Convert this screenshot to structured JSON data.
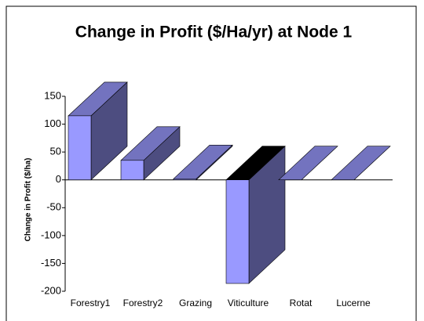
{
  "chart_data": {
    "type": "bar3d",
    "title": "Change in Profit ($/Ha/yr) at Node 1",
    "y_label": "Change in Profit ($/ha)",
    "categories": [
      "Forestry1",
      "Forestry2",
      "Grazing",
      "Viticulture",
      "Rotat",
      "Lucerne"
    ],
    "values": [
      115,
      35,
      2,
      -186,
      0,
      0
    ],
    "color": "#9999ff",
    "ylim": [
      -200,
      150
    ],
    "yticks": [
      150,
      100,
      50,
      0,
      -50,
      -100,
      -150,
      -200
    ]
  }
}
